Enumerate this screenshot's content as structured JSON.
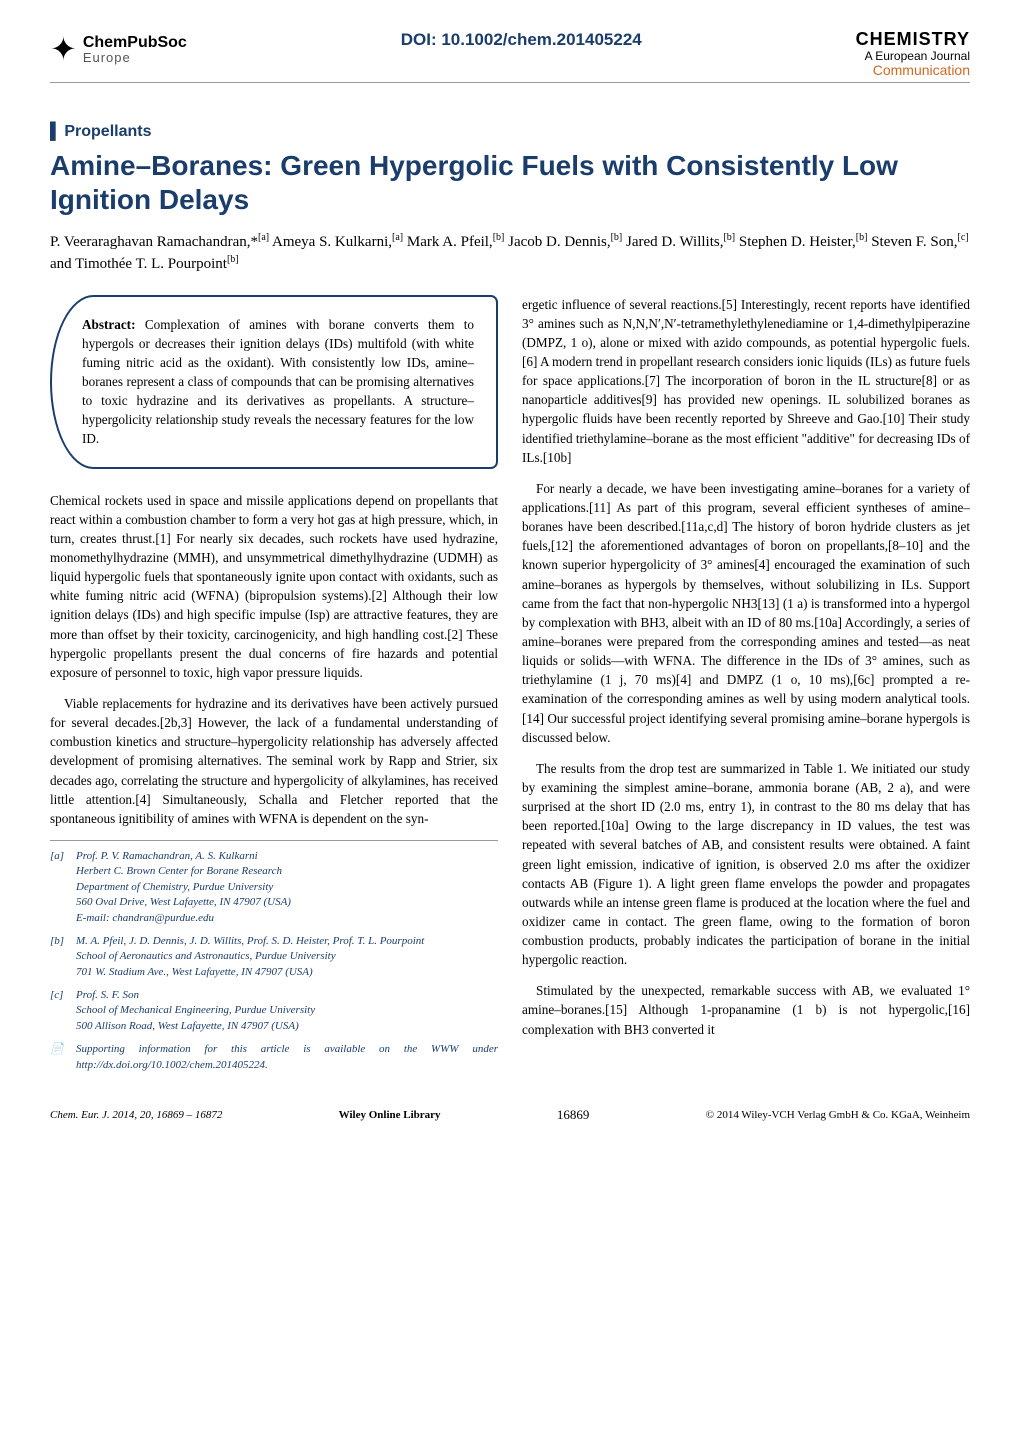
{
  "header": {
    "publisher_top": "ChemPubSoc",
    "publisher_bottom": "Europe",
    "doi": "DOI: 10.1002/chem.201405224",
    "journal_name": "CHEMISTRY",
    "journal_tagline": "A European Journal",
    "article_type": "Communication"
  },
  "category": "Propellants",
  "title": "Amine–Boranes: Green Hypergolic Fuels with Consistently Low Ignition Delays",
  "authors_html": "P. Veeraraghavan Ramachandran,*<sup>[a]</sup> Ameya S. Kulkarni,<sup>[a]</sup> Mark A. Pfeil,<sup>[b]</sup> Jacob D. Dennis,<sup>[b]</sup> Jared D. Willits,<sup>[b]</sup> Stephen D. Heister,<sup>[b]</sup> Steven F. Son,<sup>[c]</sup> and Timothée T. L. Pourpoint<sup>[b]</sup>",
  "abstract": {
    "label": "Abstract:",
    "text": "Complexation of amines with borane converts them to hypergols or decreases their ignition delays (IDs) multifold (with white fuming nitric acid as the oxidant). With consistently low IDs, amine–boranes represent a class of compounds that can be promising alternatives to toxic hydrazine and its derivatives as propellants. A structure–hypergolicity relationship study reveals the necessary features for the low ID."
  },
  "left_paragraphs": [
    "Chemical rockets used in space and missile applications depend on propellants that react within a combustion chamber to form a very hot gas at high pressure, which, in turn, creates thrust.[1] For nearly six decades, such rockets have used hydrazine, monomethylhydrazine (MMH), and unsymmetrical dimethylhydrazine (UDMH) as liquid hypergolic fuels that spontaneously ignite upon contact with oxidants, such as white fuming nitric acid (WFNA) (bipropulsion systems).[2] Although their low ignition delays (IDs) and high specific impulse (Isp) are attractive features, they are more than offset by their toxicity, carcinogenicity, and high handling cost.[2] These hypergolic propellants present the dual concerns of fire hazards and potential exposure of personnel to toxic, high vapor pressure liquids.",
    "Viable replacements for hydrazine and its derivatives have been actively pursued for several decades.[2b,3] However, the lack of a fundamental understanding of combustion kinetics and structure–hypergolicity relationship has adversely affected development of promising alternatives. The seminal work by Rapp and Strier, six decades ago, correlating the structure and hypergolicity of alkylamines, has received little attention.[4] Simultaneously, Schalla and Fletcher reported that the spontaneous ignitibility of amines with WFNA is dependent on the syn-"
  ],
  "right_paragraphs": [
    "ergetic influence of several reactions.[5] Interestingly, recent reports have identified 3° amines such as N,N,N′,N′-tetramethylethylenediamine or 1,4-dimethylpiperazine (DMPZ, 1 o), alone or mixed with azido compounds, as potential hypergolic fuels.[6] A modern trend in propellant research considers ionic liquids (ILs) as future fuels for space applications.[7] The incorporation of boron in the IL structure[8] or as nanoparticle additives[9] has provided new openings. IL solubilized boranes as hypergolic fluids have been recently reported by Shreeve and Gao.[10] Their study identified triethylamine–borane as the most efficient \"additive\" for decreasing IDs of ILs.[10b]",
    "For nearly a decade, we have been investigating amine–boranes for a variety of applications.[11] As part of this program, several efficient syntheses of amine–boranes have been described.[11a,c,d] The history of boron hydride clusters as jet fuels,[12] the aforementioned advantages of boron on propellants,[8–10] and the known superior hypergolicity of 3° amines[4] encouraged the examination of such amine–boranes as hypergols by themselves, without solubilizing in ILs. Support came from the fact that non-hypergolic NH3[13] (1 a) is transformed into a hypergol by complexation with BH3, albeit with an ID of 80 ms.[10a] Accordingly, a series of amine–boranes were prepared from the corresponding amines and tested—as neat liquids or solids—with WFNA. The difference in the IDs of 3° amines, such as triethylamine (1 j, 70 ms)[4] and DMPZ (1 o, 10 ms),[6c] prompted a re-examination of the corresponding amines as well by using modern analytical tools.[14] Our successful project identifying several promising amine–borane hypergols is discussed below.",
    "The results from the drop test are summarized in Table 1. We initiated our study by examining the simplest amine–borane, ammonia borane (AB, 2 a), and were surprised at the short ID (2.0 ms, entry 1), in contrast to the 80 ms delay that has been reported.[10a] Owing to the large discrepancy in ID values, the test was repeated with several batches of AB, and consistent results were obtained. A faint green light emission, indicative of ignition, is observed 2.0 ms after the oxidizer contacts AB (Figure 1). A light green flame envelops the powder and propagates outwards while an intense green flame is produced at the location where the fuel and oxidizer came in contact. The green flame, owing to the formation of boron combustion products, probably indicates the participation of borane in the initial hypergolic reaction.",
    "Stimulated by the unexpected, remarkable success with AB, we evaluated 1° amine–boranes.[15] Although 1-propanamine (1 b) is not hypergolic,[16] complexation with BH3 converted it"
  ],
  "affiliations": [
    {
      "label": "[a]",
      "lines": [
        "Prof. P. V. Ramachandran, A. S. Kulkarni",
        "Herbert C. Brown Center for Borane Research",
        "Department of Chemistry, Purdue University",
        "560 Oval Drive, West Lafayette, IN 47907 (USA)",
        "E-mail: chandran@purdue.edu"
      ]
    },
    {
      "label": "[b]",
      "lines": [
        "M. A. Pfeil, J. D. Dennis, J. D. Willits, Prof. S. D. Heister, Prof. T. L. Pourpoint",
        "School of Aeronautics and Astronautics, Purdue University",
        "701 W. Stadium Ave., West Lafayette, IN 47907 (USA)"
      ]
    },
    {
      "label": "[c]",
      "lines": [
        "Prof. S. F. Son",
        "School of Mechanical Engineering, Purdue University",
        "500 Allison Road, West Lafayette, IN 47907 (USA)"
      ]
    }
  ],
  "supporting_info": "Supporting information for this article is available on the WWW under http://dx.doi.org/10.1002/chem.201405224.",
  "footer": {
    "citation": "Chem. Eur. J. 2014, 20, 16869 – 16872",
    "library": "Wiley Online Library",
    "page": "16869",
    "copyright": "© 2014 Wiley-VCH Verlag GmbH & Co. KGaA, Weinheim"
  },
  "colors": {
    "accent": "#1a3d6b",
    "comm_color": "#d2691e",
    "text": "#000000",
    "bg": "#ffffff"
  }
}
